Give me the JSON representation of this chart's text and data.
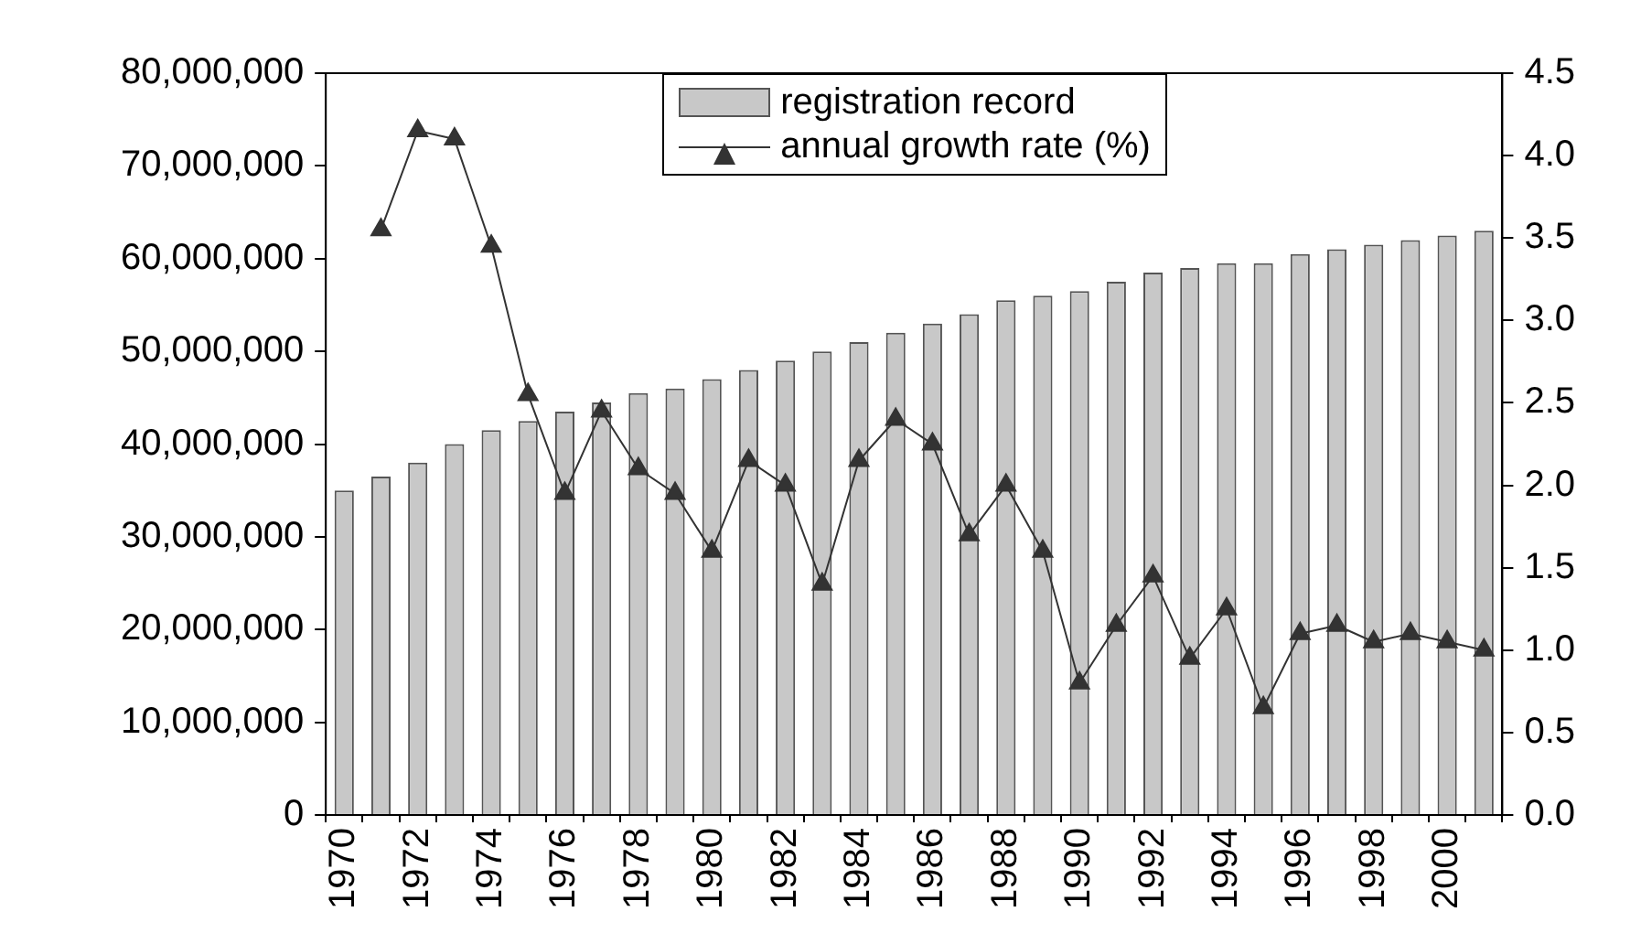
{
  "chart_data": {
    "type": "bar",
    "categories": [
      "1970",
      null,
      "1972",
      null,
      "1974",
      null,
      "1976",
      null,
      "1978",
      null,
      "1980",
      null,
      "1982",
      null,
      "1984",
      null,
      "1986",
      null,
      "1988",
      null,
      "1990",
      null,
      "1992",
      null,
      "1994",
      null,
      "1996",
      null,
      "1998",
      null,
      "2000",
      null
    ],
    "series": [
      {
        "name": "registration record",
        "color": "#c8c8c8",
        "values": [
          35000000,
          36500000,
          38000000,
          40000000,
          41500000,
          42500000,
          43500000,
          44500000,
          45500000,
          46000000,
          47000000,
          48000000,
          49000000,
          50000000,
          51000000,
          52000000,
          53000000,
          54000000,
          55500000,
          56000000,
          56500000,
          57500000,
          58500000,
          59000000,
          59500000,
          59500000,
          60500000,
          61000000,
          61500000,
          62000000,
          62500000,
          63000000
        ]
      },
      {
        "name": "annual growth rate (%)",
        "type": "line",
        "axis": "y2",
        "color": "#333333",
        "marker": "triangle",
        "values": [
          null,
          3.55,
          4.15,
          4.1,
          3.45,
          2.55,
          1.95,
          2.45,
          2.1,
          1.95,
          1.6,
          2.15,
          2.0,
          1.4,
          2.15,
          2.4,
          2.25,
          1.7,
          2.0,
          1.6,
          0.8,
          1.15,
          1.45,
          0.95,
          1.25,
          0.65,
          1.1,
          1.15,
          1.05,
          1.1,
          1.05,
          1.0
        ]
      }
    ],
    "ylim": [
      0,
      80000000
    ],
    "yticks": [
      {
        "value": 0,
        "label": "0"
      },
      {
        "value": 10000000,
        "label": "10,000,000"
      },
      {
        "value": 20000000,
        "label": "20,000,000"
      },
      {
        "value": 30000000,
        "label": "30,000,000"
      },
      {
        "value": 40000000,
        "label": "40,000,000"
      },
      {
        "value": 50000000,
        "label": "50,000,000"
      },
      {
        "value": 60000000,
        "label": "60,000,000"
      },
      {
        "value": 70000000,
        "label": "70,000,000"
      },
      {
        "value": 80000000,
        "label": "80,000,000"
      }
    ],
    "y2lim": [
      0,
      4.5
    ],
    "y2ticks": [
      {
        "value": 0,
        "label": "0.0"
      },
      {
        "value": 0.5,
        "label": "0.5"
      },
      {
        "value": 1,
        "label": "1.0"
      },
      {
        "value": 1.5,
        "label": "1.5"
      },
      {
        "value": 2,
        "label": "2.0"
      },
      {
        "value": 2.5,
        "label": "2.5"
      },
      {
        "value": 3,
        "label": "3.0"
      },
      {
        "value": 3.5,
        "label": "3.5"
      },
      {
        "value": 4,
        "label": "4.0"
      },
      {
        "value": 4.5,
        "label": "4.5"
      }
    ],
    "legend": "top",
    "grid": false
  }
}
